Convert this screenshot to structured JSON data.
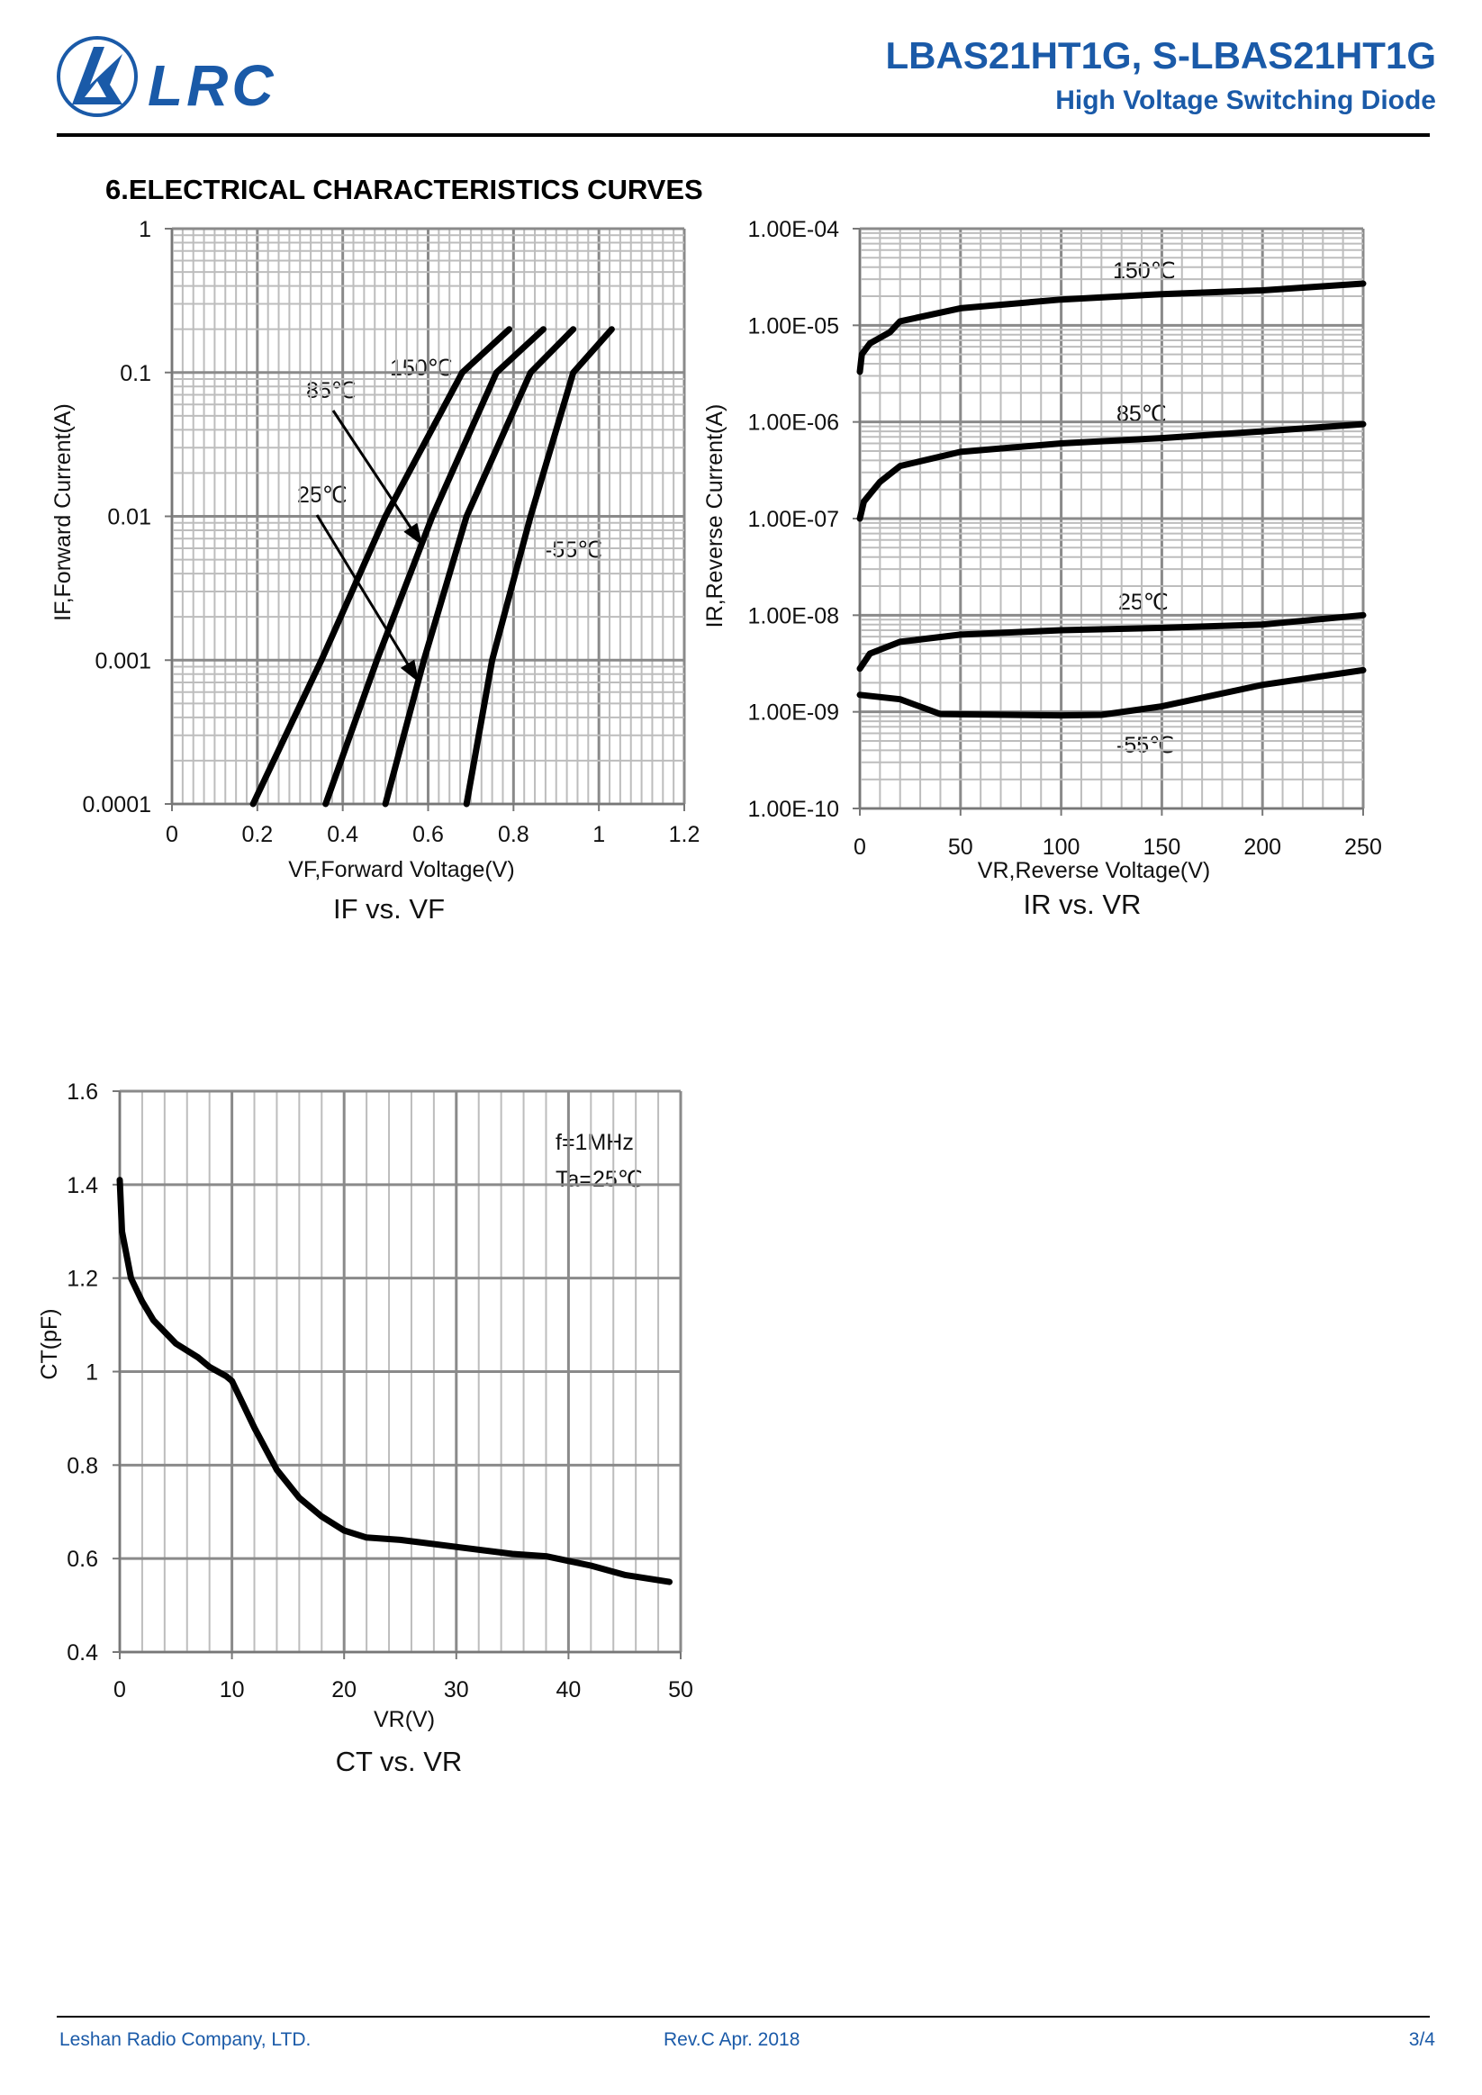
{
  "header": {
    "logo_text": "LRC",
    "title": "LBAS21HT1G, S-LBAS21HT1G",
    "subtitle": "High Voltage Switching Diode",
    "brand_color": "#1a5aa8"
  },
  "section_heading": "6.ELECTRICAL CHARACTERISTICS CURVES",
  "footer": {
    "company": "Leshan Radio Company, LTD.",
    "revision": "Rev.C   Apr.  2018",
    "page": "3/4"
  },
  "chart_data": [
    {
      "type": "line",
      "title": "IF vs. VF",
      "xlabel": "VF,Forward Voltage(V)",
      "ylabel": "IF,Forward Current(A)",
      "xlim": [
        0,
        1.2
      ],
      "ylim": [
        0.0001,
        1
      ],
      "yscale": "log",
      "grid": true,
      "x_ticks": [
        "0",
        "0.2",
        "0.4",
        "0.6",
        "0.8",
        "1",
        "1.2"
      ],
      "y_ticks": [
        "1",
        "0.1",
        "0.01",
        "0.001",
        "0.0001"
      ],
      "series": [
        {
          "name": "150℃",
          "x": [
            0.19,
            0.35,
            0.5,
            0.68,
            0.79
          ],
          "y": [
            0.0001,
            0.001,
            0.01,
            0.1,
            0.2
          ]
        },
        {
          "name": "85℃",
          "x": [
            0.36,
            0.48,
            0.61,
            0.76,
            0.87
          ],
          "y": [
            0.0001,
            0.001,
            0.01,
            0.1,
            0.2
          ]
        },
        {
          "name": "25℃",
          "x": [
            0.5,
            0.59,
            0.69,
            0.84,
            0.94
          ],
          "y": [
            0.0001,
            0.001,
            0.01,
            0.1,
            0.2
          ]
        },
        {
          "name": "-55℃",
          "x": [
            0.69,
            0.75,
            0.84,
            0.94,
            1.03
          ],
          "y": [
            0.0001,
            0.001,
            0.01,
            0.1,
            0.2
          ]
        }
      ],
      "annotations": [
        "150℃",
        "85℃",
        "25℃",
        "-55℃"
      ]
    },
    {
      "type": "line",
      "title": "IR vs. VR",
      "xlabel": "VR,Reverse Voltage(V)",
      "ylabel": "IR,Reverse Current(A)",
      "xlim": [
        0,
        250
      ],
      "ylim": [
        1e-10,
        0.0001
      ],
      "yscale": "log",
      "grid": true,
      "x_ticks": [
        "0",
        "50",
        "100",
        "150",
        "200",
        "250"
      ],
      "y_ticks": [
        "1.00E-04",
        "1.00E-05",
        "1.00E-06",
        "1.00E-07",
        "1.00E-08",
        "1.00E-09",
        "1.00E-10"
      ],
      "series": [
        {
          "name": "150℃",
          "x": [
            0,
            1,
            5,
            15,
            20,
            50,
            100,
            150,
            200,
            250
          ],
          "y": [
            3.3e-06,
            5e-06,
            6.5e-06,
            8.5e-06,
            1.1e-05,
            1.5e-05,
            1.85e-05,
            2.1e-05,
            2.3e-05,
            2.7e-05
          ]
        },
        {
          "name": "85℃",
          "x": [
            0,
            2,
            10,
            20,
            50,
            100,
            150,
            200,
            250
          ],
          "y": [
            1e-07,
            1.5e-07,
            2.4e-07,
            3.5e-07,
            4.9e-07,
            6e-07,
            6.8e-07,
            8e-07,
            9.5e-07
          ]
        },
        {
          "name": "25℃",
          "x": [
            0,
            5,
            20,
            50,
            100,
            150,
            200,
            250
          ],
          "y": [
            2.8e-09,
            4e-09,
            5.3e-09,
            6.3e-09,
            7e-09,
            7.4e-09,
            8e-09,
            1e-08
          ]
        },
        {
          "name": "-55℃",
          "x": [
            0,
            20,
            40,
            100,
            120,
            150,
            200,
            250
          ],
          "y": [
            1.5e-09,
            1.35e-09,
            9.5e-10,
            9.2e-10,
            9.3e-10,
            1.14e-09,
            1.9e-09,
            2.7e-09
          ]
        }
      ],
      "annotations": [
        "150℃",
        "85℃",
        "25℃",
        "-55℃"
      ]
    },
    {
      "type": "line",
      "title": "CT vs. VR",
      "xlabel": "VR(V)",
      "ylabel": "CT(pF)",
      "xlim": [
        0,
        50
      ],
      "ylim": [
        0.4,
        1.6
      ],
      "grid": true,
      "x_ticks": [
        "0",
        "10",
        "20",
        "30",
        "40",
        "50"
      ],
      "y_ticks": [
        "1.6",
        "1.4",
        "1.2",
        "1",
        "0.8",
        "0.6",
        "0.4"
      ],
      "series": [
        {
          "name": "CT",
          "x": [
            0,
            0.2,
            1,
            2,
            3,
            5,
            7,
            8,
            9.5,
            10,
            12,
            14,
            16,
            18,
            20,
            22,
            25,
            30,
            35,
            38,
            40,
            42,
            45,
            49
          ],
          "y": [
            1.41,
            1.3,
            1.2,
            1.15,
            1.11,
            1.06,
            1.03,
            1.01,
            0.99,
            0.98,
            0.88,
            0.79,
            0.73,
            0.69,
            0.66,
            0.645,
            0.64,
            0.625,
            0.61,
            0.605,
            0.595,
            0.585,
            0.565,
            0.55
          ]
        }
      ],
      "annotations": [
        "f=1MHz",
        "Ta=25℃"
      ]
    }
  ]
}
